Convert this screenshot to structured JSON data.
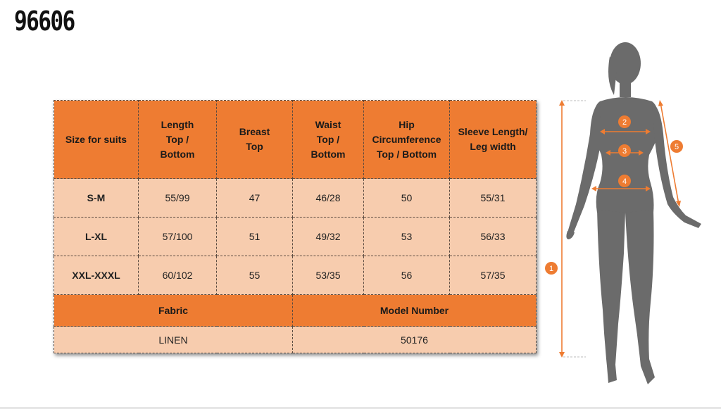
{
  "product": {
    "code": "96606"
  },
  "colors": {
    "header": "#ee7c32",
    "row": "#f7ccae",
    "accent": "#ee7c32",
    "figure": "#6b6b6b"
  },
  "table": {
    "headers": [
      "Size for suits",
      "Length\nTop /\nBottom",
      "Breast\nTop",
      "Waist\nTop /\nBottom",
      "Hip\nCircumference\nTop / Bottom",
      "Sleeve Length/\nLeg width"
    ],
    "rows": [
      [
        "S-M",
        "55/99",
        "47",
        "46/28",
        "50",
        "55/31"
      ],
      [
        "L-XL",
        "57/100",
        "51",
        "49/32",
        "53",
        "56/33"
      ],
      [
        "XXL-XXXL",
        "60/102",
        "55",
        "53/35",
        "56",
        "57/35"
      ]
    ],
    "fabric_label": "Fabric",
    "model_label": "Model Number",
    "fabric_value": "LINEN",
    "model_value": "50176"
  },
  "figure": {
    "icon": "body-silhouette-icon",
    "markers": [
      "1",
      "2",
      "3",
      "4",
      "5"
    ]
  }
}
